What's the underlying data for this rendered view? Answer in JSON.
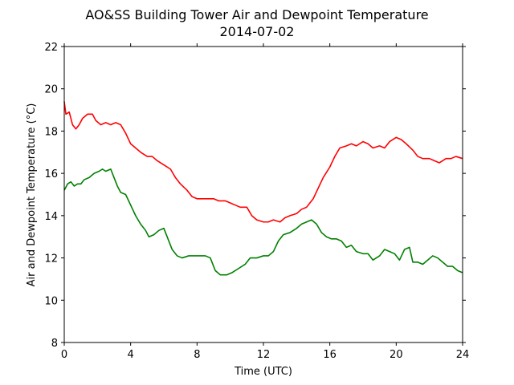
{
  "chart_data": {
    "type": "line",
    "title": "AO&SS Building Tower Air and Dewpoint Temperature",
    "subtitle": "2014-07-02",
    "xlabel": "Time (UTC)",
    "ylabel": "Air and Dewpoint Temperature (°C)",
    "xlim": [
      0,
      24
    ],
    "ylim": [
      8,
      22
    ],
    "xticks": [
      0,
      4,
      8,
      12,
      16,
      20,
      24
    ],
    "yticks": [
      8,
      10,
      12,
      14,
      16,
      18,
      20,
      22
    ],
    "grid": false,
    "legend": "none",
    "series": [
      {
        "color": "#ff0000",
        "points": [
          [
            0.0,
            19.4
          ],
          [
            0.1,
            18.8
          ],
          [
            0.3,
            18.9
          ],
          [
            0.5,
            18.3
          ],
          [
            0.7,
            18.1
          ],
          [
            0.9,
            18.3
          ],
          [
            1.1,
            18.6
          ],
          [
            1.4,
            18.8
          ],
          [
            1.7,
            18.8
          ],
          [
            1.9,
            18.5
          ],
          [
            2.2,
            18.3
          ],
          [
            2.5,
            18.4
          ],
          [
            2.8,
            18.3
          ],
          [
            3.1,
            18.4
          ],
          [
            3.4,
            18.3
          ],
          [
            3.7,
            17.9
          ],
          [
            4.0,
            17.4
          ],
          [
            4.3,
            17.2
          ],
          [
            4.6,
            17.0
          ],
          [
            5.0,
            16.8
          ],
          [
            5.3,
            16.8
          ],
          [
            5.6,
            16.6
          ],
          [
            6.0,
            16.4
          ],
          [
            6.4,
            16.2
          ],
          [
            6.7,
            15.8
          ],
          [
            7.0,
            15.5
          ],
          [
            7.4,
            15.2
          ],
          [
            7.7,
            14.9
          ],
          [
            8.0,
            14.8
          ],
          [
            8.5,
            14.8
          ],
          [
            9.0,
            14.8
          ],
          [
            9.3,
            14.7
          ],
          [
            9.7,
            14.7
          ],
          [
            10.0,
            14.6
          ],
          [
            10.3,
            14.5
          ],
          [
            10.6,
            14.4
          ],
          [
            11.0,
            14.4
          ],
          [
            11.3,
            14.0
          ],
          [
            11.6,
            13.8
          ],
          [
            12.0,
            13.7
          ],
          [
            12.3,
            13.7
          ],
          [
            12.6,
            13.8
          ],
          [
            13.0,
            13.7
          ],
          [
            13.3,
            13.9
          ],
          [
            13.6,
            14.0
          ],
          [
            14.0,
            14.1
          ],
          [
            14.3,
            14.3
          ],
          [
            14.6,
            14.4
          ],
          [
            15.0,
            14.8
          ],
          [
            15.3,
            15.3
          ],
          [
            15.6,
            15.8
          ],
          [
            16.0,
            16.3
          ],
          [
            16.3,
            16.8
          ],
          [
            16.6,
            17.2
          ],
          [
            17.0,
            17.3
          ],
          [
            17.3,
            17.4
          ],
          [
            17.6,
            17.3
          ],
          [
            18.0,
            17.5
          ],
          [
            18.3,
            17.4
          ],
          [
            18.6,
            17.2
          ],
          [
            19.0,
            17.3
          ],
          [
            19.3,
            17.2
          ],
          [
            19.6,
            17.5
          ],
          [
            20.0,
            17.7
          ],
          [
            20.3,
            17.6
          ],
          [
            20.6,
            17.4
          ],
          [
            21.0,
            17.1
          ],
          [
            21.3,
            16.8
          ],
          [
            21.6,
            16.7
          ],
          [
            22.0,
            16.7
          ],
          [
            22.3,
            16.6
          ],
          [
            22.6,
            16.5
          ],
          [
            23.0,
            16.7
          ],
          [
            23.3,
            16.7
          ],
          [
            23.6,
            16.8
          ],
          [
            24.0,
            16.7
          ]
        ]
      },
      {
        "color": "#008000",
        "points": [
          [
            0.0,
            15.2
          ],
          [
            0.2,
            15.5
          ],
          [
            0.4,
            15.6
          ],
          [
            0.6,
            15.4
          ],
          [
            0.8,
            15.5
          ],
          [
            1.0,
            15.5
          ],
          [
            1.2,
            15.7
          ],
          [
            1.5,
            15.8
          ],
          [
            1.8,
            16.0
          ],
          [
            2.1,
            16.1
          ],
          [
            2.3,
            16.2
          ],
          [
            2.5,
            16.1
          ],
          [
            2.8,
            16.2
          ],
          [
            3.0,
            15.8
          ],
          [
            3.2,
            15.4
          ],
          [
            3.4,
            15.1
          ],
          [
            3.7,
            15.0
          ],
          [
            4.0,
            14.5
          ],
          [
            4.3,
            14.0
          ],
          [
            4.6,
            13.6
          ],
          [
            4.9,
            13.3
          ],
          [
            5.1,
            13.0
          ],
          [
            5.4,
            13.1
          ],
          [
            5.7,
            13.3
          ],
          [
            6.0,
            13.4
          ],
          [
            6.2,
            13.0
          ],
          [
            6.5,
            12.4
          ],
          [
            6.8,
            12.1
          ],
          [
            7.1,
            12.0
          ],
          [
            7.5,
            12.1
          ],
          [
            8.0,
            12.1
          ],
          [
            8.5,
            12.1
          ],
          [
            8.8,
            12.0
          ],
          [
            9.1,
            11.4
          ],
          [
            9.4,
            11.2
          ],
          [
            9.8,
            11.2
          ],
          [
            10.1,
            11.3
          ],
          [
            10.5,
            11.5
          ],
          [
            10.9,
            11.7
          ],
          [
            11.2,
            12.0
          ],
          [
            11.6,
            12.0
          ],
          [
            12.0,
            12.1
          ],
          [
            12.3,
            12.1
          ],
          [
            12.6,
            12.3
          ],
          [
            12.9,
            12.8
          ],
          [
            13.2,
            13.1
          ],
          [
            13.6,
            13.2
          ],
          [
            14.0,
            13.4
          ],
          [
            14.3,
            13.6
          ],
          [
            14.6,
            13.7
          ],
          [
            14.9,
            13.8
          ],
          [
            15.2,
            13.6
          ],
          [
            15.5,
            13.2
          ],
          [
            15.8,
            13.0
          ],
          [
            16.1,
            12.9
          ],
          [
            16.4,
            12.9
          ],
          [
            16.7,
            12.8
          ],
          [
            17.0,
            12.5
          ],
          [
            17.3,
            12.6
          ],
          [
            17.6,
            12.3
          ],
          [
            18.0,
            12.2
          ],
          [
            18.3,
            12.2
          ],
          [
            18.6,
            11.9
          ],
          [
            19.0,
            12.1
          ],
          [
            19.3,
            12.4
          ],
          [
            19.6,
            12.3
          ],
          [
            19.9,
            12.2
          ],
          [
            20.2,
            11.9
          ],
          [
            20.5,
            12.4
          ],
          [
            20.8,
            12.5
          ],
          [
            21.0,
            11.8
          ],
          [
            21.3,
            11.8
          ],
          [
            21.6,
            11.7
          ],
          [
            21.9,
            11.9
          ],
          [
            22.2,
            12.1
          ],
          [
            22.5,
            12.0
          ],
          [
            22.8,
            11.8
          ],
          [
            23.1,
            11.6
          ],
          [
            23.4,
            11.6
          ],
          [
            23.7,
            11.4
          ],
          [
            24.0,
            11.3
          ]
        ]
      }
    ]
  }
}
